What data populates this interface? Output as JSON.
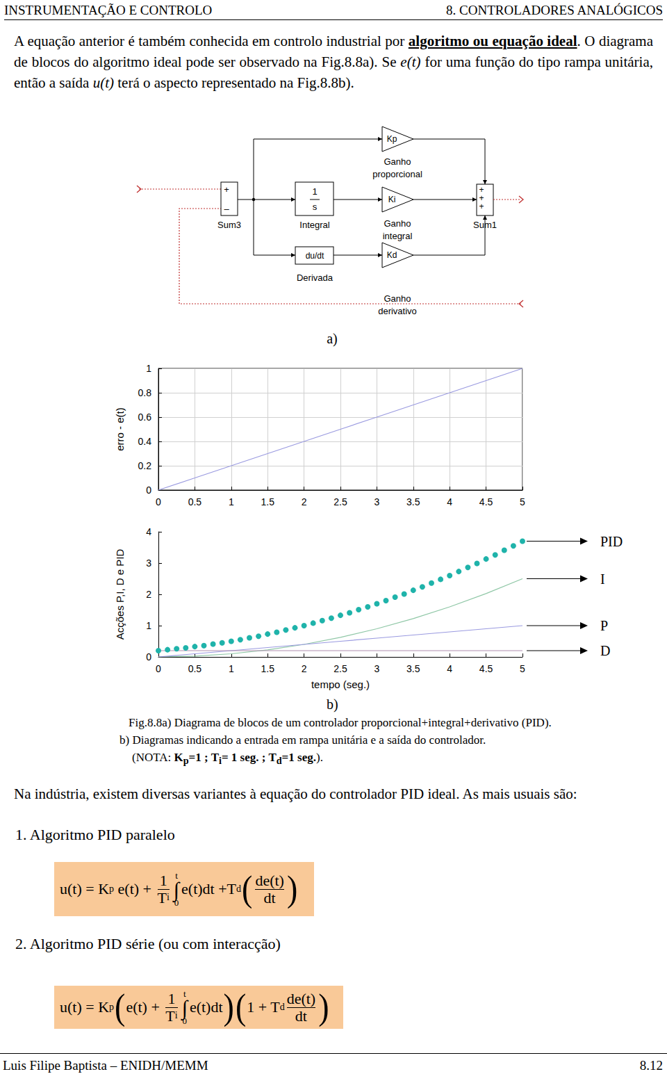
{
  "header": {
    "left": "INSTRUMENTAÇÃO E CONTROLO",
    "right": "8. CONTROLADORES ANALÓGICOS"
  },
  "intro": [
    {
      "text": "A equação anterior é também conhecida em controlo industrial por "
    },
    {
      "text": "algoritmo ou equação ideal",
      "bold": true,
      "underline": true
    },
    {
      "text": ". O diagrama de blocos do algoritmo ideal pode ser observado na Fig.8.8a). Se "
    },
    {
      "text": "e(t)",
      "italic": true
    },
    {
      "text": " for uma função do tipo rampa unitária,  então a saída "
    },
    {
      "text": "u(t)",
      "italic": true
    },
    {
      "text": " terá o aspecto representado na Fig.8.8b)."
    }
  ],
  "diagram": {
    "sum3": {
      "label": "Sum3",
      "signs": [
        "+",
        "–"
      ]
    },
    "integral": {
      "num": "1",
      "den": "s",
      "label": "Integral"
    },
    "derivative": {
      "text": "du/dt",
      "label": "Derivada"
    },
    "gains": [
      {
        "text": "Kp",
        "label": [
          "Ganho",
          "proporcional"
        ]
      },
      {
        "text": "Ki",
        "label": [
          "Ganho",
          "integral"
        ]
      },
      {
        "text": "Kd",
        "label": [
          "Ganho",
          "derivativo"
        ]
      }
    ],
    "sum1": {
      "label": "Sum1",
      "signs": [
        "+",
        "+",
        "+"
      ]
    },
    "panel_label": "a)"
  },
  "chart_data": [
    {
      "type": "line",
      "ylabel": "erro - e(t)",
      "xlim": [
        0,
        5
      ],
      "xticks": [
        0,
        0.5,
        1,
        1.5,
        2,
        2.5,
        3,
        3.5,
        4,
        4.5,
        5
      ],
      "ylim": [
        0,
        1
      ],
      "yticks": [
        0,
        0.2,
        0.4,
        0.6,
        0.8,
        1
      ],
      "grid": true,
      "series": [
        {
          "color": "#9a9ae0",
          "x": [
            0,
            0.5,
            1,
            1.5,
            2,
            2.5,
            3,
            3.5,
            4,
            4.5,
            5
          ],
          "values": [
            0,
            0.1,
            0.2,
            0.3,
            0.4,
            0.5,
            0.6,
            0.7,
            0.8,
            0.9,
            1
          ]
        }
      ]
    },
    {
      "type": "line",
      "ylabel": "Acções P,I, D e PID",
      "xlabel": "tempo (seg.)",
      "xlim": [
        0,
        5
      ],
      "xticks": [
        0,
        0.5,
        1,
        1.5,
        2,
        2.5,
        3,
        3.5,
        4,
        4.5,
        5
      ],
      "ylim": [
        0,
        4
      ],
      "yticks": [
        0,
        1,
        2,
        3,
        4
      ],
      "grid": false,
      "series": [
        {
          "name": "PID",
          "color": "#1fb3aa",
          "marker": "circle",
          "line_style": "none",
          "x": [
            0,
            0.125,
            0.25,
            0.375,
            0.5,
            0.625,
            0.75,
            0.875,
            1,
            1.125,
            1.25,
            1.375,
            1.5,
            1.625,
            1.75,
            1.875,
            2,
            2.125,
            2.25,
            2.375,
            2.5,
            2.625,
            2.75,
            2.875,
            3,
            3.125,
            3.25,
            3.375,
            3.5,
            3.625,
            3.75,
            3.875,
            4,
            4.125,
            4.25,
            4.375,
            4.5,
            4.625,
            4.75,
            4.875,
            5
          ],
          "values": [
            0.2,
            0.23,
            0.26,
            0.29,
            0.33,
            0.36,
            0.41,
            0.45,
            0.5,
            0.55,
            0.61,
            0.66,
            0.73,
            0.79,
            0.86,
            0.93,
            1.0,
            1.08,
            1.16,
            1.24,
            1.33,
            1.41,
            1.51,
            1.6,
            1.7,
            1.8,
            1.91,
            2.01,
            2.13,
            2.24,
            2.36,
            2.48,
            2.6,
            2.73,
            2.86,
            2.99,
            3.13,
            3.26,
            3.41,
            3.55,
            3.7
          ]
        },
        {
          "name": "I",
          "color": "#8fc7a6",
          "marker": "none",
          "line_style": "solid",
          "x": [
            0,
            0.5,
            1,
            1.5,
            2,
            2.5,
            3,
            3.5,
            4,
            4.5,
            5
          ],
          "values": [
            0,
            0.025,
            0.1,
            0.225,
            0.4,
            0.625,
            0.9,
            1.225,
            1.6,
            2.025,
            2.5
          ]
        },
        {
          "name": "P",
          "color": "#9a9ae0",
          "marker": "none",
          "line_style": "solid",
          "x": [
            0,
            0.5,
            1,
            1.5,
            2,
            2.5,
            3,
            3.5,
            4,
            4.5,
            5
          ],
          "values": [
            0,
            0.1,
            0.2,
            0.3,
            0.4,
            0.5,
            0.6,
            0.7,
            0.8,
            0.9,
            1
          ]
        },
        {
          "name": "D",
          "color": "#b08fb0",
          "marker": "none",
          "line_style": "solid",
          "x": [
            0,
            0.5,
            1,
            1.5,
            2,
            2.5,
            3,
            3.5,
            4,
            4.5,
            5
          ],
          "values": [
            0.2,
            0.2,
            0.2,
            0.2,
            0.2,
            0.2,
            0.2,
            0.2,
            0.2,
            0.2,
            0.2
          ]
        }
      ]
    }
  ],
  "panel_b_label": "b)",
  "caption": [
    [
      {
        "text": "Fig.8.8a) Diagrama de blocos de um controlador proporcional+integral+derivativo (PID)."
      }
    ],
    [
      {
        "text": "b) Diagramas indicando a entrada em rampa unitária e a saída do controlador."
      }
    ],
    [
      {
        "text": "(NOTA: "
      },
      {
        "text": "K",
        "bold": true
      },
      {
        "text": "p",
        "sub": true,
        "bold": true
      },
      {
        "text": "=1 ; T",
        "bold": true
      },
      {
        "text": "i",
        "sub": true,
        "bold": true
      },
      {
        "text": "= 1 seg. ; T",
        "bold": true
      },
      {
        "text": "d",
        "sub": true,
        "bold": true
      },
      {
        "text": "=1 seg.",
        "bold": true
      },
      {
        "text": ")."
      }
    ]
  ],
  "body_text": "Na indústria, existem diversas variantes à equação do controlador PID ideal. As mais usuais são:",
  "algorithms": [
    {
      "heading": "1. Algoritmo PID paralelo",
      "equation": [
        {
          "t": "u(t) = "
        },
        {
          "t": "K"
        },
        {
          "sub": "p"
        },
        {
          "t": " e(t) + "
        },
        {
          "frac": [
            [
              {
                "t": "1"
              }
            ],
            [
              {
                "t": "T"
              },
              {
                "sub": "i"
              }
            ]
          ]
        },
        {
          "int": {
            "sign": "∫",
            "upper": "t",
            "lower": "0"
          }
        },
        {
          "t": "e(t)dt +T"
        },
        {
          "sub": "d"
        },
        {
          "open": "("
        },
        {
          "frac": [
            [
              {
                "t": "de(t)"
              }
            ],
            [
              {
                "t": "dt"
              }
            ]
          ]
        },
        {
          "close": ")"
        }
      ]
    },
    {
      "heading": "2. Algoritmo PID série (ou com interacção)",
      "equation": [
        {
          "t": "u(t) = "
        },
        {
          "t": "K"
        },
        {
          "sub": "p"
        },
        {
          "open": "("
        },
        {
          "t": "e(t) + "
        },
        {
          "frac": [
            [
              {
                "t": "1"
              }
            ],
            [
              {
                "t": "T"
              },
              {
                "sub": "i"
              }
            ]
          ]
        },
        {
          "int": {
            "sign": "∫",
            "upper": "t",
            "lower": "0"
          }
        },
        {
          "t": "e(t)dt"
        },
        {
          "close": ")"
        },
        {
          "open": "("
        },
        {
          "t": "1 + T"
        },
        {
          "sub": "d"
        },
        {
          "frac": [
            [
              {
                "t": "de(t)"
              }
            ],
            [
              {
                "t": "dt"
              }
            ]
          ]
        },
        {
          "close": ")"
        }
      ]
    }
  ],
  "footer": {
    "left": "Luis Filipe Baptista – ENIDH/MEMM",
    "right": "8.12"
  }
}
